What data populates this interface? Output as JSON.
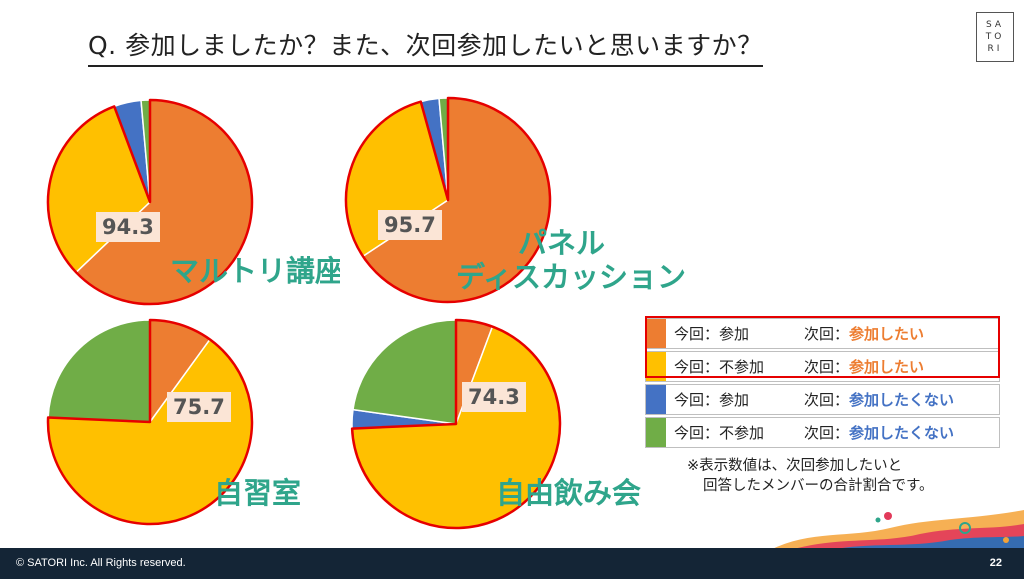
{
  "title": "Q. 参加しましたか？また、次回参加したいと思いますか？",
  "logo": {
    "lines": [
      "SA",
      "TO",
      "RI"
    ]
  },
  "colors": {
    "attend_want": "#ed7d31",
    "absent_want": "#ffc000",
    "attend_not": "#4472c4",
    "absent_not": "#70ad47",
    "highlight_border": "#e60000",
    "label_green": "#2fa58b",
    "value_box": "#fbe5d6"
  },
  "charts": [
    {
      "label": "マルトリ講座",
      "value_text": "94.3"
    },
    {
      "label": "パネル\nディスカッション",
      "label_line1": "パネル",
      "label_line2": "ディスカッション",
      "value_text": "95.7"
    },
    {
      "label": "自習室",
      "value_text": "75.7"
    },
    {
      "label": "自由飲み会",
      "value_text": "74.3"
    }
  ],
  "chart_data": [
    {
      "type": "pie",
      "title": "マルトリ講座",
      "categories": [
        "今回：参加 次回：参加したい",
        "今回：不参加 次回：参加したい",
        "今回：参加 次回：参加したくない",
        "今回：不参加 次回：参加したくない"
      ],
      "values": [
        62.9,
        31.4,
        4.3,
        1.4
      ],
      "highlight_total": 94.3
    },
    {
      "type": "pie",
      "title": "パネル ディスカッション",
      "categories": [
        "今回：参加 次回：参加したい",
        "今回：不参加 次回：参加したい",
        "今回：参加 次回：参加したくない",
        "今回：不参加 次回：参加したくない"
      ],
      "values": [
        65.7,
        30.0,
        2.9,
        1.4
      ],
      "highlight_total": 95.7
    },
    {
      "type": "pie",
      "title": "自習室",
      "categories": [
        "今回：参加 次回：参加したい",
        "今回：不参加 次回：参加したい",
        "今回：参加 次回：参加したくない",
        "今回：不参加 次回：参加したくない"
      ],
      "values": [
        10.0,
        65.7,
        0.0,
        24.3
      ],
      "highlight_total": 75.7
    },
    {
      "type": "pie",
      "title": "自由飲み会",
      "categories": [
        "今回：参加 次回：参加したい",
        "今回：不参加 次回：参加したい",
        "今回：参加 次回：参加したくない",
        "今回：不参加 次回：参加したくない"
      ],
      "values": [
        5.7,
        68.6,
        2.9,
        22.8
      ],
      "highlight_total": 74.3
    }
  ],
  "legend": [
    {
      "prev": "今回：参加",
      "next_prefix": "次回：",
      "next_value": "参加したい",
      "color": "#ed7d31",
      "text_color": "#ed7d31"
    },
    {
      "prev": "今回：不参加",
      "next_prefix": "次回：",
      "next_value": "参加したい",
      "color": "#ffc000",
      "text_color": "#ed7d31"
    },
    {
      "prev": "今回：参加",
      "next_prefix": "次回：",
      "next_value": "参加したくない",
      "color": "#4472c4",
      "text_color": "#4472c4"
    },
    {
      "prev": "今回：不参加",
      "next_prefix": "次回：",
      "next_value": "参加したくない",
      "color": "#70ad47",
      "text_color": "#4472c4"
    }
  ],
  "note": {
    "line1": "※表示数値は、次回参加したいと",
    "line2": "回答したメンバーの合計割合です。"
  },
  "footer": {
    "copyright": "© SATORI Inc. All Rights reserved.",
    "page": "22"
  }
}
